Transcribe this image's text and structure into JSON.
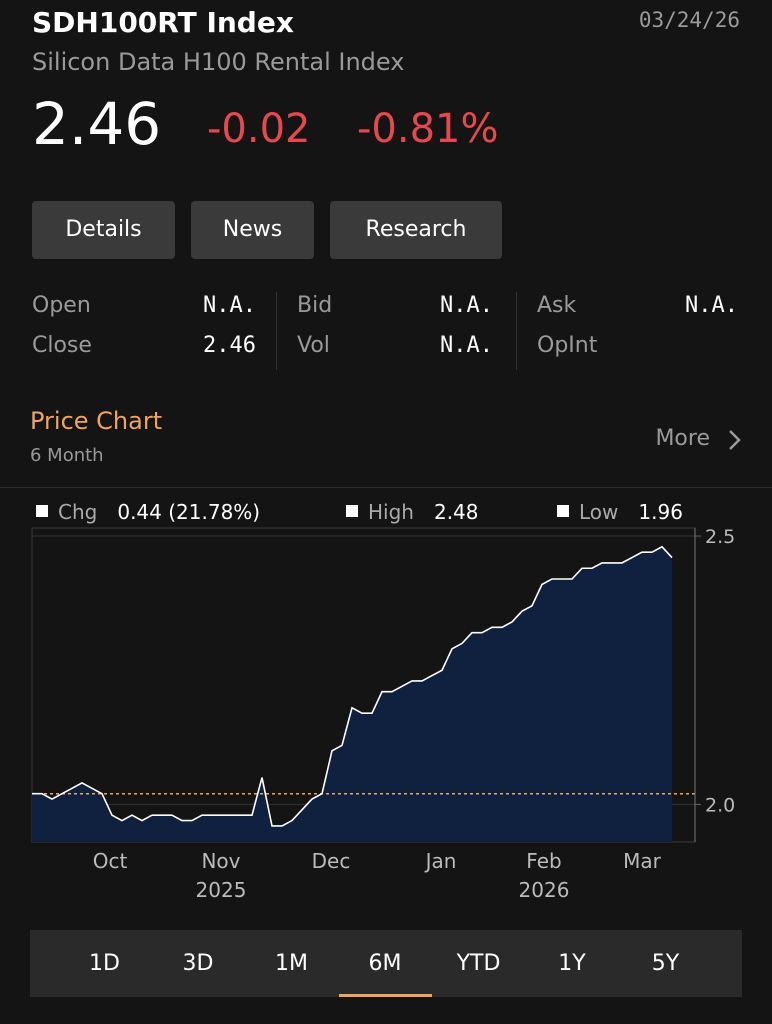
{
  "header": {
    "title": "SDH100RT Index",
    "date": "03/24/26",
    "subtitle": "Silicon Data H100 Rental Index"
  },
  "quote": {
    "price": "2.46",
    "change": "-0.02",
    "change_pct": "-0.81%"
  },
  "buttons": [
    "Details",
    "News",
    "Research"
  ],
  "stats": {
    "rows": [
      [
        [
          "Open",
          "N.A."
        ],
        [
          "Bid",
          "N.A."
        ],
        [
          "Ask",
          "N.A."
        ]
      ],
      [
        [
          "Close",
          "2.46"
        ],
        [
          "Vol",
          "N.A."
        ],
        [
          "OpInt",
          ""
        ]
      ]
    ]
  },
  "section": {
    "title": "Price Chart",
    "subtitle": "6 Month",
    "more": "More"
  },
  "chart_data": {
    "type": "line",
    "color": "#ffffff",
    "fill": "#10203f",
    "values": [
      2.02,
      2.02,
      2.01,
      2.02,
      2.03,
      2.04,
      2.03,
      2.02,
      1.98,
      1.97,
      1.98,
      1.97,
      1.98,
      1.98,
      1.98,
      1.97,
      1.97,
      1.98,
      1.98,
      1.98,
      1.98,
      1.98,
      1.98,
      2.05,
      1.96,
      1.96,
      1.97,
      1.99,
      2.01,
      2.02,
      2.1,
      2.11,
      2.18,
      2.17,
      2.17,
      2.21,
      2.21,
      2.22,
      2.23,
      2.23,
      2.24,
      2.25,
      2.29,
      2.3,
      2.32,
      2.32,
      2.33,
      2.33,
      2.34,
      2.36,
      2.37,
      2.41,
      2.42,
      2.42,
      2.42,
      2.44,
      2.44,
      2.45,
      2.45,
      2.45,
      2.46,
      2.47,
      2.47,
      2.48,
      2.46
    ],
    "ylim": [
      1.93,
      2.515
    ],
    "yticks": [
      2.5,
      {
        "value": 2,
        "label": "2.0"
      }
    ],
    "grid": true,
    "reference": 2.02,
    "xticks": [
      {
        "value": 7.8,
        "label": "Oct"
      },
      {
        "value": 18.9,
        "label": "Nov"
      },
      {
        "value": 29.9,
        "label": "Dec"
      },
      {
        "value": 40.9,
        "label": "Jan"
      },
      {
        "value": 51.2,
        "label": "Feb"
      },
      {
        "value": 61,
        "label": "Mar"
      }
    ],
    "xticks_years": [
      {
        "value": 18.9,
        "label": "2025"
      },
      {
        "value": 51.2,
        "label": "2026"
      }
    ],
    "legend": [
      {
        "name": "Chg",
        "value": "0.44 (21.78%)"
      },
      {
        "name": "High",
        "value": "2.48"
      },
      {
        "name": "Low",
        "value": "1.96"
      }
    ]
  },
  "ranges": [
    "1D",
    "3D",
    "1M",
    "6M",
    "YTD",
    "1Y",
    "5Y"
  ]
}
